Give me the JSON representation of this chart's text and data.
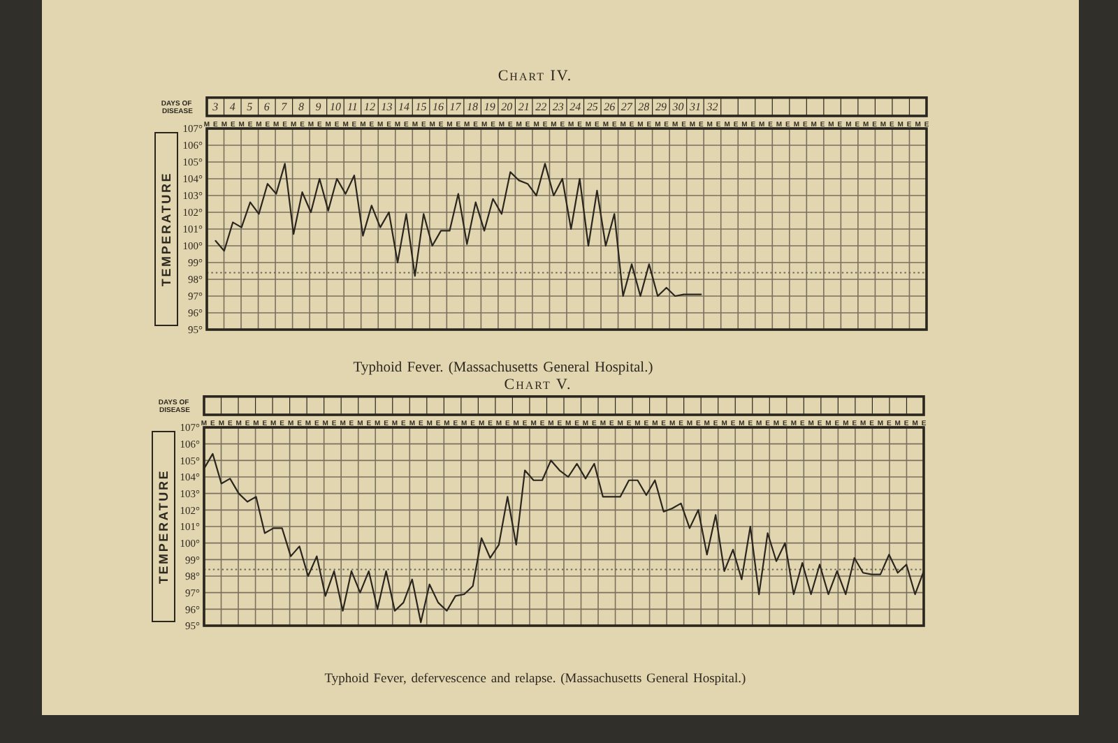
{
  "chart_data": [
    {
      "type": "line",
      "title": "Chart IV.",
      "annotations": [
        "Typhoid Fever. (Massachusetts General Hospital.)"
      ],
      "ylabel": "TEMPERATURE",
      "x2label": "DAYS OF DISEASE",
      "categories": [
        "M",
        "E",
        "M",
        "E",
        "M",
        "E",
        "M",
        "E",
        "M",
        "E",
        "M",
        "E",
        "M",
        "E",
        "M",
        "E",
        "M",
        "E",
        "M",
        "E",
        "M",
        "E",
        "M",
        "E",
        "M",
        "E",
        "M",
        "E",
        "M",
        "E",
        "M",
        "E",
        "M",
        "E",
        "M",
        "E",
        "M",
        "E",
        "M",
        "E",
        "M",
        "E",
        "M",
        "E",
        "M",
        "E",
        "M",
        "E",
        "M",
        "E",
        "M",
        "E",
        "M",
        "E",
        "M",
        "E",
        "M",
        "E",
        "M",
        "E",
        "M",
        "E",
        "M",
        "E",
        "M",
        "E",
        "M",
        "E",
        "M",
        "E",
        "M",
        "E",
        "M",
        "E",
        "M",
        "E",
        "M",
        "E",
        "M",
        "E",
        "M",
        "E",
        "M",
        "E"
      ],
      "x2lim": [
        2.5,
        44.5
      ],
      "x2ticks": [
        3,
        4,
        5,
        6,
        7,
        8,
        9,
        10,
        11,
        12,
        13,
        14,
        15,
        16,
        17,
        18,
        19,
        20,
        21,
        22,
        23,
        24,
        25,
        26,
        27,
        28,
        29,
        30,
        31,
        32
      ],
      "values": [
        null,
        100.3,
        99.7,
        101.4,
        101.1,
        102.6,
        101.9,
        103.7,
        103.1,
        104.9,
        100.7,
        103.2,
        102,
        104,
        102.1,
        104,
        103.1,
        104.2,
        100.6,
        102.4,
        101.1,
        102,
        99,
        101.9,
        98.2,
        101.9,
        100,
        100.9,
        100.9,
        103.1,
        100.1,
        102.6,
        100.9,
        102.8,
        101.9,
        104.4,
        103.9,
        103.7,
        103,
        104.9,
        103,
        104,
        101,
        104,
        100,
        103.3,
        100,
        101.9,
        97,
        98.9,
        97,
        98.9,
        97,
        97.5,
        97,
        97.1,
        97.1,
        97.1,
        null,
        null,
        null,
        null,
        null,
        null,
        null,
        null,
        null,
        null,
        null,
        null,
        null,
        null,
        null,
        null,
        null,
        null,
        null,
        null,
        null,
        null,
        null,
        null,
        null,
        null
      ],
      "color": "#2a251e",
      "ylim": [
        95,
        107
      ],
      "yticks": [
        {
          "value": 95,
          "label": "95°"
        },
        {
          "value": 96,
          "label": "96°"
        },
        {
          "value": 97,
          "label": "97°"
        },
        {
          "value": 98,
          "label": "98°"
        },
        {
          "value": 99,
          "label": "99°"
        },
        {
          "value": 100,
          "label": "100°"
        },
        {
          "value": 101,
          "label": "101°"
        },
        {
          "value": 102,
          "label": "102°"
        },
        {
          "value": 103,
          "label": "103°"
        },
        {
          "value": 104,
          "label": "104°"
        },
        {
          "value": 105,
          "label": "105°"
        },
        {
          "value": 106,
          "label": "106°"
        },
        {
          "value": 107,
          "label": "107°"
        }
      ],
      "grid": true,
      "marker": "none",
      "line_style": "solid",
      "ref_lines": [
        {
          "axis": "y",
          "value": 98.4,
          "line_style": "dotted",
          "color": "#6e6656"
        }
      ]
    },
    {
      "type": "line",
      "title": "Chart V.",
      "annotations": [
        "Typhoid Fever, defervescence and relapse. (Massachusetts General Hospital.)"
      ],
      "ylabel": "TEMPERATURE",
      "x2label": "DAYS OF DISEASE",
      "categories": [
        "M",
        "E",
        "M",
        "E",
        "M",
        "E",
        "M",
        "E",
        "M",
        "E",
        "M",
        "E",
        "M",
        "E",
        "M",
        "E",
        "M",
        "E",
        "M",
        "E",
        "M",
        "E",
        "M",
        "E",
        "M",
        "E",
        "M",
        "E",
        "M",
        "E",
        "M",
        "E",
        "M",
        "E",
        "M",
        "E",
        "M",
        "E",
        "M",
        "E",
        "M",
        "E",
        "M",
        "E",
        "M",
        "E",
        "M",
        "E",
        "M",
        "E",
        "M",
        "E",
        "M",
        "E",
        "M",
        "E",
        "M",
        "E",
        "M",
        "E",
        "M",
        "E",
        "M",
        "E",
        "M",
        "E",
        "M",
        "E",
        "M",
        "E",
        "M",
        "E",
        "M",
        "E",
        "M",
        "E",
        "M",
        "E",
        "M",
        "E",
        "M",
        "E",
        "M",
        "E"
      ],
      "values": [
        104.5,
        105.4,
        103.6,
        103.9,
        103,
        102.5,
        102.8,
        100.6,
        100.9,
        100.9,
        99.2,
        99.8,
        98,
        99.2,
        96.8,
        98.3,
        95.9,
        98.3,
        97,
        98.3,
        96,
        98.3,
        95.9,
        96.4,
        97.8,
        95.2,
        97.5,
        96.4,
        95.9,
        96.8,
        96.9,
        97.4,
        100.3,
        99.1,
        99.9,
        102.8,
        99.9,
        104.4,
        103.8,
        103.8,
        105,
        104.4,
        104,
        104.8,
        103.9,
        104.8,
        102.8,
        102.8,
        102.8,
        103.8,
        103.8,
        102.9,
        103.8,
        101.9,
        102.1,
        102.4,
        100.9,
        102,
        99.3,
        101.7,
        98.3,
        99.6,
        97.8,
        101,
        96.9,
        100.6,
        98.9,
        100,
        96.9,
        98.8,
        96.9,
        98.7,
        96.9,
        98.3,
        96.9,
        99.1,
        98.2,
        98.1,
        98.1,
        99.3,
        98.2,
        98.7,
        96.9,
        98.3
      ],
      "color": "#2a251e",
      "ylim": [
        95,
        107
      ],
      "yticks": [
        {
          "value": 95,
          "label": "95°"
        },
        {
          "value": 96,
          "label": "96°"
        },
        {
          "value": 97,
          "label": "97°"
        },
        {
          "value": 98,
          "label": "98°"
        },
        {
          "value": 99,
          "label": "99°"
        },
        {
          "value": 100,
          "label": "100°"
        },
        {
          "value": 101,
          "label": "101°"
        },
        {
          "value": 102,
          "label": "102°"
        },
        {
          "value": 103,
          "label": "103°"
        },
        {
          "value": 104,
          "label": "104°"
        },
        {
          "value": 105,
          "label": "105°"
        },
        {
          "value": 106,
          "label": "106°"
        },
        {
          "value": 107,
          "label": "107°"
        }
      ],
      "grid": true,
      "marker": "none",
      "line_style": "solid",
      "ref_lines": [
        {
          "axis": "y",
          "value": 98.4,
          "line_style": "dotted",
          "color": "#6e6656"
        }
      ]
    }
  ]
}
